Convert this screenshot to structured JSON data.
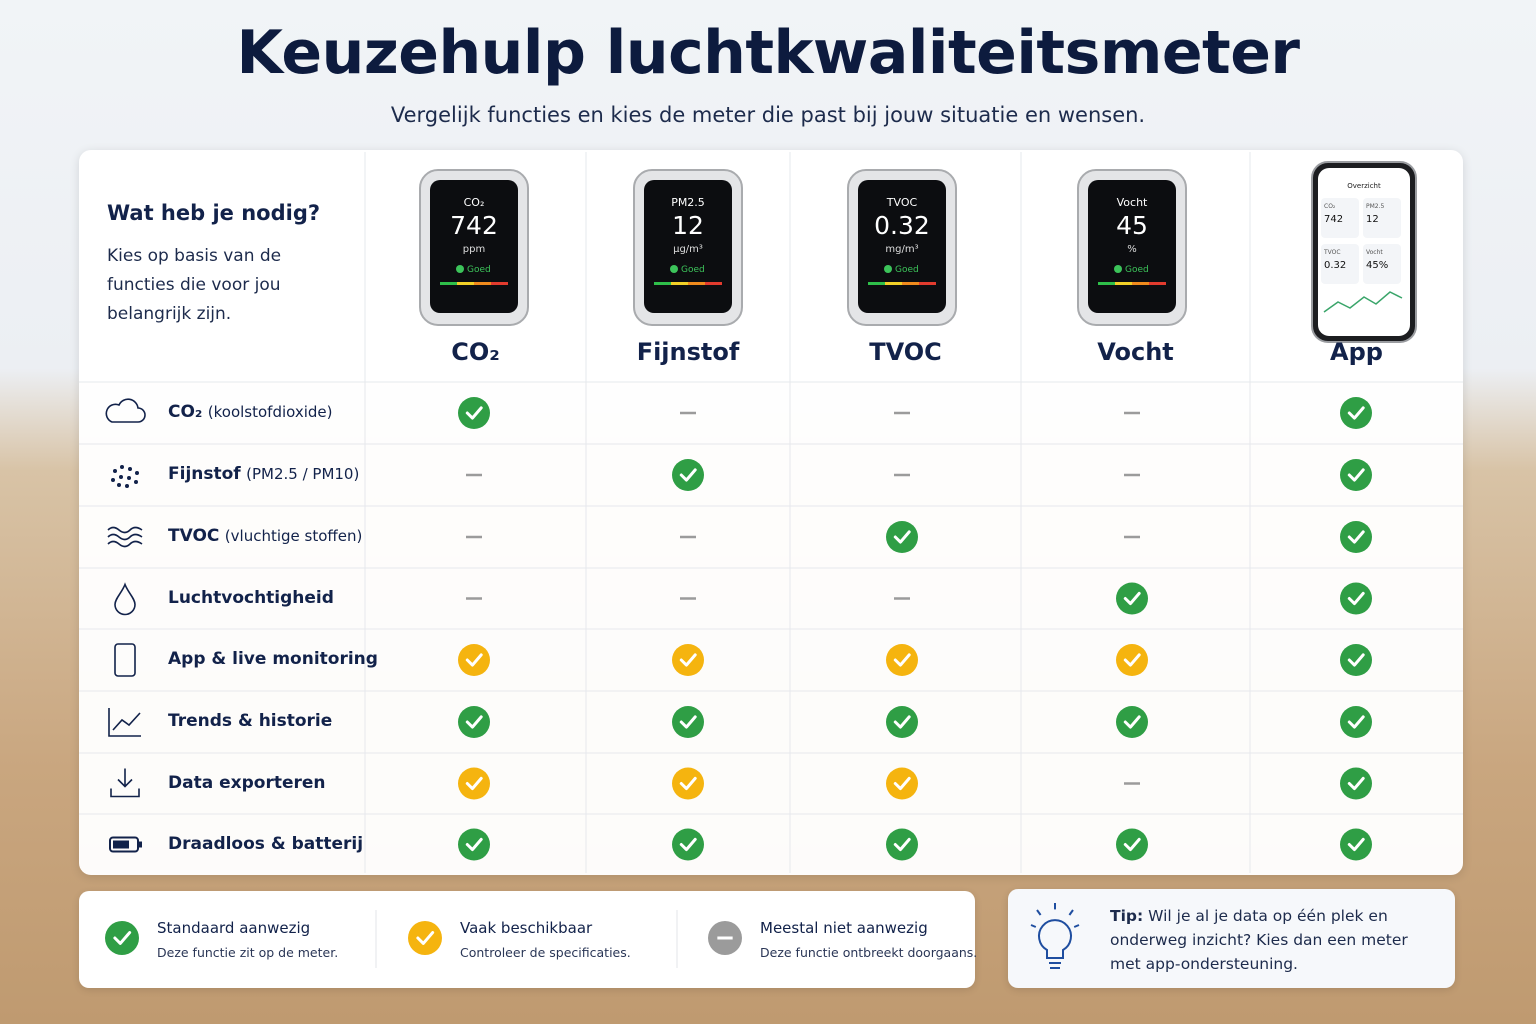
{
  "header": {
    "title": "Keuzehulp luchtkwaliteitsmeter",
    "subtitle": "Vergelijk functies en kies de meter die past bij jouw situatie en wensen."
  },
  "intro": {
    "heading": "Wat heb je nodig?",
    "text": "Kies op basis van de functies die voor jou belangrijk zijn."
  },
  "columns": [
    {
      "name": "CO₂",
      "screen": {
        "label": "CO₂",
        "reading": "742",
        "unit": "ppm",
        "status": "Goed"
      }
    },
    {
      "name": "Fijnstof",
      "screen": {
        "label": "PM2.5",
        "reading": "12",
        "unit": "µg/m³",
        "status": "Goed"
      }
    },
    {
      "name": "TVOC",
      "screen": {
        "label": "TVOC",
        "reading": "0.32",
        "unit": "mg/m³",
        "status": "Goed"
      }
    },
    {
      "name": "Vocht",
      "screen": {
        "label": "Vocht",
        "reading": "45",
        "unit": "%",
        "status": "Goed"
      }
    },
    {
      "name": "App",
      "phone": {
        "title": "Overzicht",
        "tiles": [
          {
            "label": "CO₂",
            "value": "742"
          },
          {
            "label": "PM2.5",
            "value": "12"
          },
          {
            "label": "TVOC",
            "value": "0.32"
          },
          {
            "label": "Vocht",
            "value": "45%"
          }
        ]
      }
    }
  ],
  "rows": [
    {
      "name": "CO₂",
      "detail": "(koolstofdioxide)",
      "cells": [
        0,
        2,
        2,
        2,
        0
      ]
    },
    {
      "name": "Fijnstof",
      "detail": "(PM2.5 / PM10)",
      "cells": [
        2,
        0,
        2,
        2,
        0
      ]
    },
    {
      "name": "TVOC",
      "detail": "(vluchtige stoffen)",
      "cells": [
        2,
        2,
        0,
        2,
        0
      ]
    },
    {
      "name": "Luchtvochtigheid",
      "cells": [
        2,
        2,
        2,
        0,
        0
      ]
    },
    {
      "name": "App & live monitoring",
      "cells": [
        1,
        1,
        1,
        1,
        0
      ]
    },
    {
      "name": "Trends & historie",
      "cells": [
        0,
        0,
        0,
        0,
        0
      ]
    },
    {
      "name": "Data exporteren",
      "cells": [
        1,
        1,
        1,
        2,
        0
      ]
    },
    {
      "name": "Draadloos & batterij",
      "cells": [
        0,
        0,
        0,
        0,
        0
      ]
    }
  ],
  "legend": [
    {
      "title": "Standaard aanwezig",
      "text": "Deze functie zit op de meter.",
      "color": "#2f9e45"
    },
    {
      "title": "Vaak beschikbaar",
      "text": "Controleer de specificaties.",
      "color": "#f5b40f"
    },
    {
      "title": "Meestal niet aanwezig",
      "text": "Deze functie ontbreekt doorgaans.",
      "color": "#9b9b9b"
    }
  ],
  "tip": {
    "label": "Tip:",
    "text": "Wil je al je data op één plek en onderweg inzicht? Kies dan een meter met app-ondersteuning."
  }
}
